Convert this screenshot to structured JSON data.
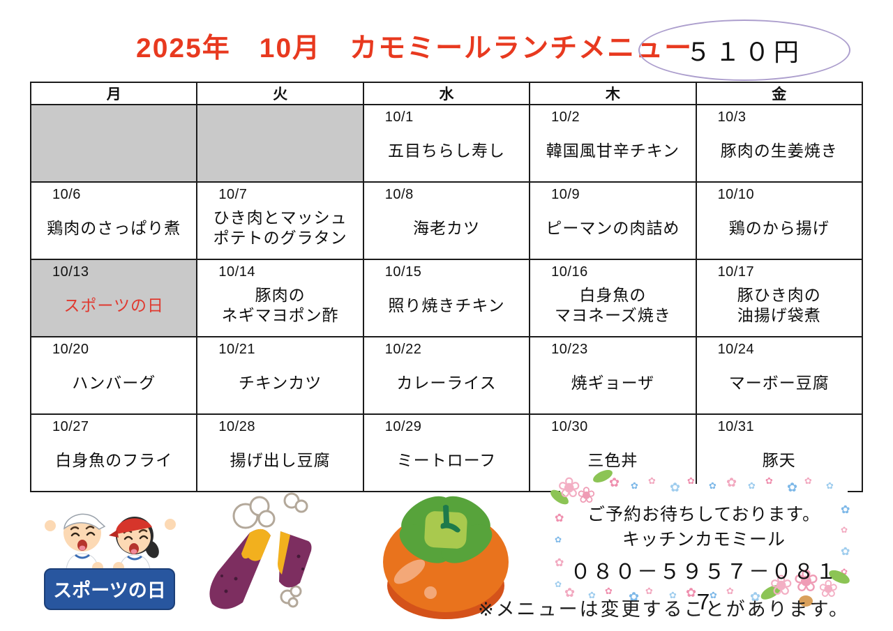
{
  "title": "2025年　10月　カモミールランチメニュー",
  "price_badge": "５１０円",
  "calendar": {
    "day_headers": [
      "月",
      "火",
      "水",
      "木",
      "金"
    ],
    "rows": [
      [
        {
          "date": "",
          "menu": "",
          "gray": true
        },
        {
          "date": "",
          "menu": "",
          "gray": true
        },
        {
          "date": "10/1",
          "menu": "五目ちらし寿し"
        },
        {
          "date": "10/2",
          "menu": "韓国風甘辛チキン"
        },
        {
          "date": "10/3",
          "menu": "豚肉の生姜焼き"
        }
      ],
      [
        {
          "date": "10/6",
          "menu": "鶏肉のさっぱり煮"
        },
        {
          "date": "10/7",
          "menu": "ひき肉とマッシュ\nポテトのグラタン"
        },
        {
          "date": "10/8",
          "menu": "海老カツ"
        },
        {
          "date": "10/9",
          "menu": "ピーマンの肉詰め"
        },
        {
          "date": "10/10",
          "menu": "鶏のから揚げ"
        }
      ],
      [
        {
          "date": "10/13",
          "menu": "スポーツの日",
          "gray": true,
          "red": true
        },
        {
          "date": "10/14",
          "menu": "豚肉の\nネギマヨポン酢"
        },
        {
          "date": "10/15",
          "menu": "照り焼きチキン"
        },
        {
          "date": "10/16",
          "menu": "白身魚の\nマヨネーズ焼き"
        },
        {
          "date": "10/17",
          "menu": "豚ひき肉の\n油揚げ袋煮"
        }
      ],
      [
        {
          "date": "10/20",
          "menu": "ハンバーグ"
        },
        {
          "date": "10/21",
          "menu": "チキンカツ"
        },
        {
          "date": "10/22",
          "menu": "カレーライス"
        },
        {
          "date": "10/23",
          "menu": "焼ギョーザ"
        },
        {
          "date": "10/24",
          "menu": "マーボー豆腐"
        }
      ],
      [
        {
          "date": "10/27",
          "menu": "白身魚のフライ"
        },
        {
          "date": "10/28",
          "menu": "揚げ出し豆腐"
        },
        {
          "date": "10/29",
          "menu": "ミートローフ"
        },
        {
          "date": "10/30",
          "menu": "三色丼"
        },
        {
          "date": "10/31",
          "menu": "豚天"
        }
      ]
    ]
  },
  "sports_sign_label": "スポーツの日",
  "reservation_box": {
    "line1": "ご予約お待ちしております。",
    "line2": "キッチンカモミール",
    "phone": "０８０－５９５７－０８１７"
  },
  "note": "※メニューは変更することがあります。",
  "icons": {
    "sports_day": "sports-day-kids-with-sign-illustration",
    "sweet_potato": "roasted-sweet-potato-illustration",
    "persimmon": "persimmon-illustration",
    "flower_border": "flower-frame-decoration"
  },
  "colors": {
    "title_red": "#e8391f",
    "holiday_red": "#e0392f",
    "cell_gray": "#c9c9c9",
    "oval_purple": "#ac9ecd",
    "sign_blue": "#28569f",
    "flower_pink": "#ef8fae",
    "flower_blue": "#7db8e8"
  }
}
